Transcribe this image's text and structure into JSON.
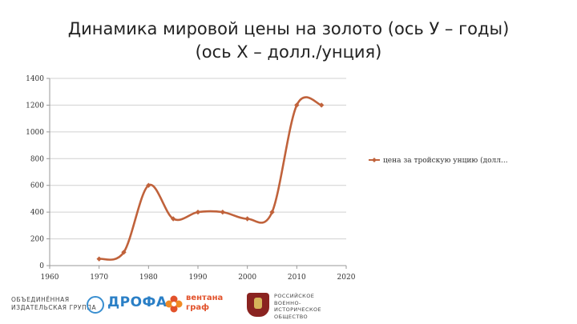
{
  "chart_data": {
    "type": "line",
    "title_lines": [
      "Динамика мировой цены на золото (ось У – годы)",
      "(ось Х – долл./унция)"
    ],
    "xlabel": "",
    "ylabel": "",
    "xlim": [
      1960,
      2020
    ],
    "ylim": [
      0,
      1400
    ],
    "x_ticks": [
      "1960",
      "1970",
      "1980",
      "1990",
      "2000",
      "2010",
      "2020"
    ],
    "y_ticks": [
      "0",
      "200",
      "400",
      "600",
      "800",
      "1000",
      "1200",
      "1400"
    ],
    "grid": "horizontal",
    "legend_position": "right",
    "smooth": true,
    "series": [
      {
        "name": "цена за тройскую унцию (долл...",
        "color": "#c0623b",
        "marker": "diamond",
        "x": [
          1970,
          1975,
          1980,
          1985,
          1990,
          1995,
          2000,
          2005,
          2010,
          2015
        ],
        "y": [
          50,
          100,
          600,
          350,
          400,
          400,
          350,
          400,
          1200,
          1200
        ]
      }
    ]
  },
  "footer": {
    "publisher_group_line1": "ОБЪЕДИНЁННАЯ",
    "publisher_group_line2": "ИЗДАТЕЛЬСКАЯ ГРУППА",
    "drofa_label": "ДРОФА",
    "ventana_line1": "вентана",
    "ventana_line2": "граф",
    "rus_line1": "РОССИЙСКОЕ",
    "rus_line2": "ВОЕННО-ИСТОРИЧЕСКОЕ",
    "rus_line3": "ОБЩЕСТВО"
  }
}
